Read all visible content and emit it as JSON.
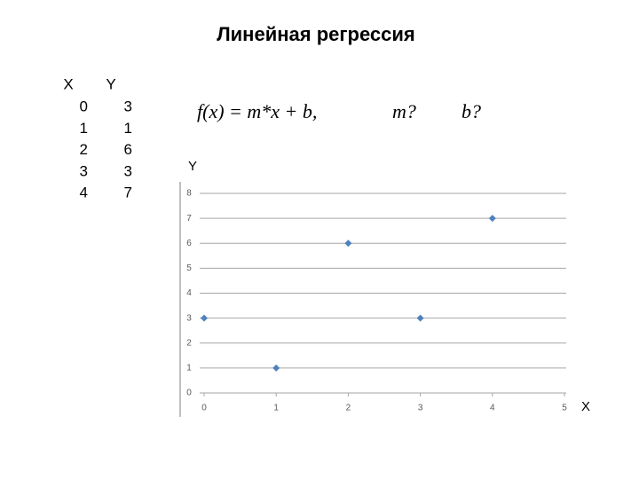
{
  "title": "Линейная регрессия",
  "table": {
    "header": [
      "X",
      "Y"
    ],
    "rows": [
      [
        "0",
        "3"
      ],
      [
        "1",
        "1"
      ],
      [
        "2",
        "6"
      ],
      [
        "3",
        "3"
      ],
      [
        "4",
        "7"
      ]
    ]
  },
  "formula": {
    "expression": "f(x) = m*x + b,",
    "unknowns": [
      "m?",
      "b?"
    ]
  },
  "chart_data": {
    "type": "scatter",
    "xlabel": "X",
    "ylabel": "Y",
    "x": [
      0,
      1,
      2,
      3,
      4
    ],
    "values": [
      3,
      1,
      6,
      3,
      7
    ],
    "color": "#4f81bd",
    "xlim": [
      0,
      5
    ],
    "xticks": [
      0,
      1,
      2,
      3,
      4,
      5
    ],
    "ylim": [
      0,
      8
    ],
    "yticks": [
      0,
      1,
      2,
      3,
      4,
      5,
      6,
      7,
      8
    ],
    "grid": true
  }
}
